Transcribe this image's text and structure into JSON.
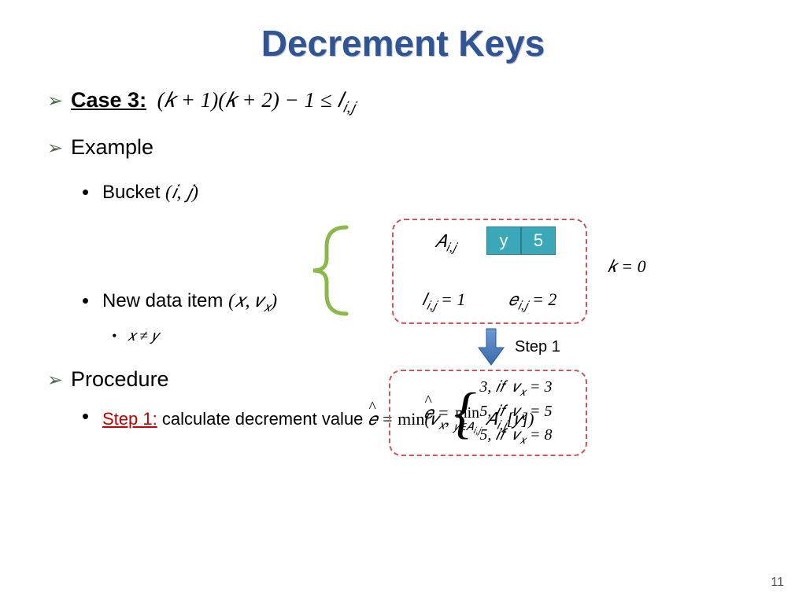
{
  "title": "Decrement Keys",
  "case": {
    "label": "Case 3:",
    "expr_html": "(𝑘 + 1)(𝑘 + 2) − 1 ≤ 𝑙<sub class='sub'>𝑖,𝑗</sub>"
  },
  "example_label": "Example",
  "bucket": {
    "label": "Bucket ",
    "expr": "(𝑖, 𝑗)"
  },
  "newdata": {
    "label": "New data item ",
    "expr_html": "(𝑥, 𝑣<sub class='sub'>𝑥</sub>)"
  },
  "xney": "𝑥 ≠ 𝑦",
  "procedure_label": "Procedure",
  "step1": {
    "label": "Step 1:",
    "text_html": " calculate decrement value <span class='math'><span class='hat'>𝑒</span> = <span style='font-style:normal'>min</span>(𝑣<sub class='sub'>𝑥</sub>, <span style='display:inline-block;text-align:center;vertical-align:middle;line-height:1.0'><span style='display:block;font-style:normal;font-size:0.9em'>min</span><span style='display:block;font-size:0.65em'>𝑦∈𝐴<sub style='font-size:0.8em'>𝑖,𝑗</sub></span></span> 𝐴<sub class='sub'>𝑖,𝑗</sub>[𝑦])</span>"
  },
  "page_number": "11",
  "box1": {
    "A_label_html": "𝐴<sub class='sub'>𝑖,𝑗</sub>",
    "cells": [
      "y",
      "5"
    ],
    "l_html": "𝑙<sub class='sub'>𝑖,𝑗</sub> = 1",
    "e_html": "𝑒<sub class='sub'>𝑖,𝑗</sub> = 2"
  },
  "k0": "𝑘 = 0",
  "step1_arrow_label": "Step 1",
  "box2": {
    "ehat_html": "<span class='hat'>𝑒</span> =",
    "rows": [
      "3, 𝑖𝑓&nbsp; 𝑣<sub class='sub'>𝑥</sub> = 3",
      "5, 𝑖𝑓&nbsp; 𝑣<sub class='sub'>𝑥</sub> = 5",
      "5, 𝑖𝑓&nbsp; 𝑣<sub class='sub'>𝑥</sub> = 8"
    ]
  },
  "colors": {
    "title": "#2f5597",
    "dashed_border": "#c55a5a",
    "cell_bg": "#3aa8b8",
    "brace": "#8bb84a",
    "arrow": "#3a6aa8",
    "step_red": "#c00000"
  }
}
